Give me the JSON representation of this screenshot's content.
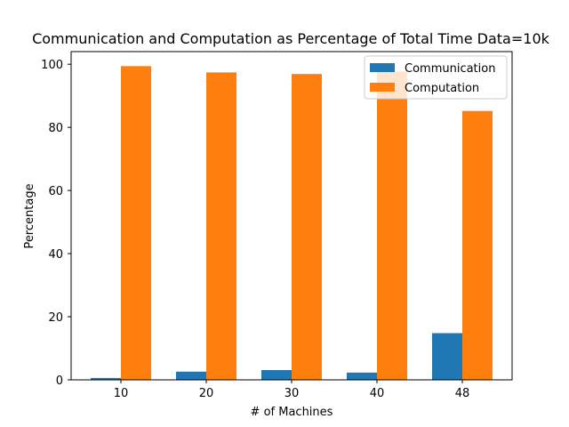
{
  "chart_data": {
    "type": "bar",
    "title": "Communication and Computation as Percentage of Total Time Data=10k",
    "xlabel": "# of Machines",
    "ylabel": "Percentage",
    "categories": [
      "10",
      "20",
      "30",
      "40",
      "48"
    ],
    "series": [
      {
        "name": "Communication",
        "values": [
          0.6,
          2.6,
          3.1,
          2.3,
          14.8
        ],
        "color": "#1f77b4"
      },
      {
        "name": "Computation",
        "values": [
          99.4,
          97.4,
          96.9,
          97.7,
          85.2
        ],
        "color": "#ff7f0e"
      }
    ],
    "ylim": [
      0,
      104
    ],
    "yticks": [
      0,
      20,
      40,
      60,
      80,
      100
    ],
    "grid": false,
    "legend_position": "top-right"
  }
}
